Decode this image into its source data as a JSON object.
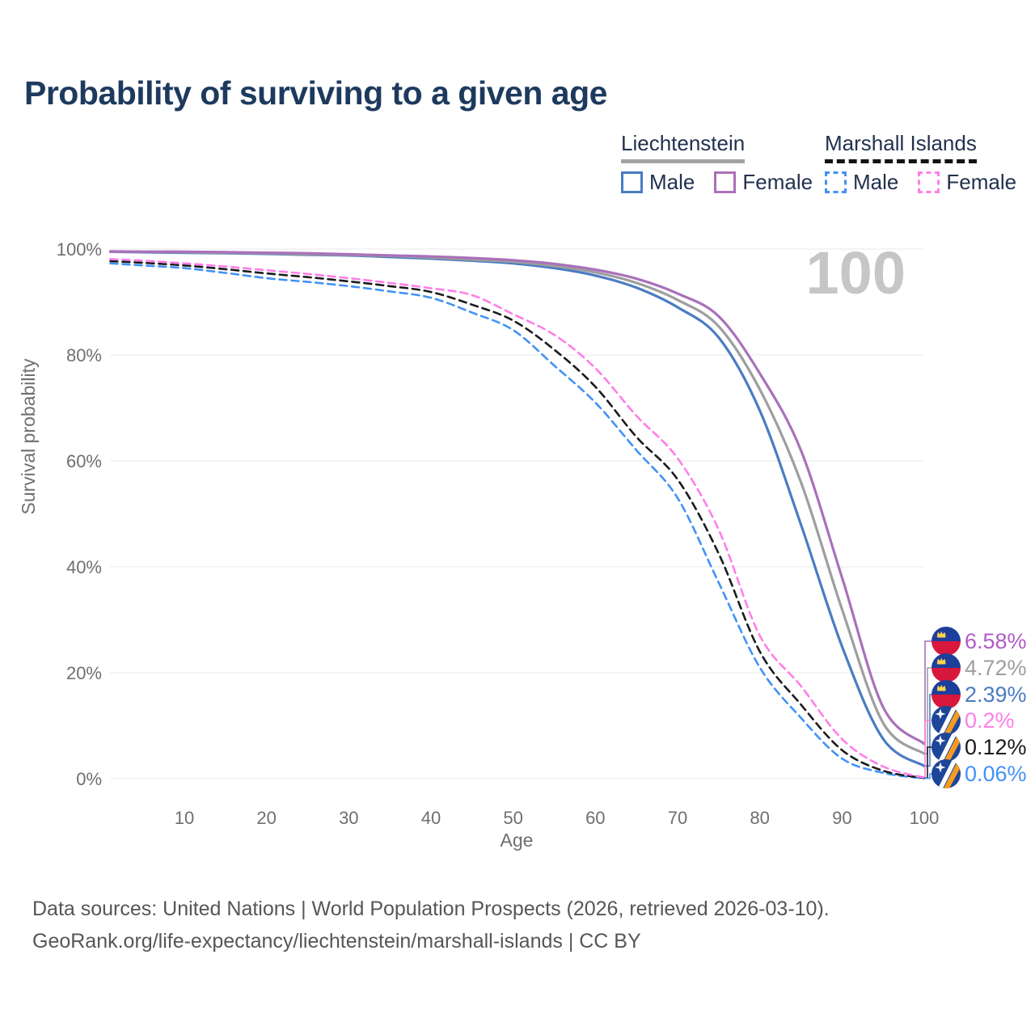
{
  "title": "Probability of surviving to a given age",
  "watermark": "100",
  "legend": {
    "groups": [
      {
        "label": "Liechtenstein",
        "style": "solid",
        "items": [
          {
            "label": "Male",
            "color": "#4a7cc2"
          },
          {
            "label": "Female",
            "color": "#a971ba"
          }
        ]
      },
      {
        "label": "Marshall Islands",
        "style": "dashed",
        "items": [
          {
            "label": "Male",
            "color": "#4292f5"
          },
          {
            "label": "Female",
            "color": "#ff7ee8"
          }
        ]
      }
    ]
  },
  "chart_data": {
    "type": "line",
    "title": "Probability of surviving to a given age",
    "xlabel": "Age",
    "ylabel": "Survival probability",
    "xlim": [
      0,
      100
    ],
    "ylim": [
      0,
      100
    ],
    "grid": "horizontal",
    "x_ticks": [
      10,
      20,
      30,
      40,
      50,
      60,
      70,
      80,
      90,
      100
    ],
    "y_ticks": [
      "0%",
      "20%",
      "40%",
      "60%",
      "80%",
      "100%"
    ],
    "x": [
      0,
      5,
      10,
      15,
      20,
      25,
      30,
      35,
      40,
      45,
      50,
      55,
      60,
      65,
      70,
      75,
      80,
      85,
      90,
      95,
      100
    ],
    "series": [
      {
        "name": "Liechtenstein Female",
        "country": "Liechtenstein",
        "sex": "Female",
        "flag": "liechtenstein",
        "color": "#a971ba",
        "label_color": "#b05cc6",
        "dash": false,
        "end_label": "6.58%",
        "values": [
          99.6,
          99.5,
          99.5,
          99.4,
          99.3,
          99.2,
          99.0,
          98.8,
          98.6,
          98.3,
          97.9,
          97.2,
          96.1,
          94.4,
          91.6,
          87.3,
          76.5,
          62,
          38,
          13.5,
          6.58
        ]
      },
      {
        "name": "Liechtenstein Total",
        "country": "Liechtenstein",
        "sex": "Both",
        "flag": "liechtenstein",
        "color": "#9e9e9e",
        "label_color": "#9e9e9e",
        "dash": false,
        "end_label": "4.72%",
        "values": [
          99.5,
          99.5,
          99.4,
          99.3,
          99.2,
          99.0,
          98.9,
          98.7,
          98.4,
          98.0,
          97.6,
          96.8,
          95.6,
          93.6,
          90.4,
          85.4,
          73.5,
          56,
          32,
          10.5,
          4.72
        ]
      },
      {
        "name": "Liechtenstein Male",
        "country": "Liechtenstein",
        "sex": "Male",
        "flag": "liechtenstein",
        "color": "#4a7cc2",
        "label_color": "#4a7cc2",
        "dash": false,
        "end_label": "2.39%",
        "values": [
          99.5,
          99.4,
          99.3,
          99.2,
          99.1,
          98.9,
          98.8,
          98.5,
          98.2,
          97.8,
          97.3,
          96.4,
          95.0,
          92.7,
          89.0,
          83.3,
          69.5,
          48,
          25,
          7.5,
          2.39
        ]
      },
      {
        "name": "Marshall Islands Female",
        "country": "Marshall Islands",
        "sex": "Female",
        "flag": "marshall-islands",
        "color": "#ff7ee8",
        "label_color": "#ff7ee8",
        "dash": true,
        "end_label": "0.2%",
        "values": [
          98.2,
          97.8,
          97.3,
          96.7,
          96.0,
          95.3,
          94.5,
          93.6,
          92.6,
          91.3,
          87.7,
          83.8,
          77.5,
          68.5,
          60.5,
          47.0,
          27.0,
          17.5,
          7.5,
          2.3,
          0.2
        ]
      },
      {
        "name": "Marshall Islands Total",
        "country": "Marshall Islands",
        "sex": "Both",
        "flag": "marshall-islands",
        "color": "#1b1b1b",
        "label_color": "#1b1b1b",
        "dash": true,
        "end_label": "0.12%",
        "values": [
          97.8,
          97.4,
          96.9,
          96.2,
          95.4,
          94.7,
          93.9,
          93.0,
          91.9,
          89.5,
          86.5,
          81.0,
          74.0,
          64.5,
          56.5,
          42.5,
          24.0,
          14.0,
          5.4,
          1.5,
          0.12
        ]
      },
      {
        "name": "Marshall Islands Male",
        "country": "Marshall Islands",
        "sex": "Male",
        "flag": "marshall-islands",
        "color": "#4292f5",
        "label_color": "#4292f5",
        "dash": true,
        "end_label": "0.06%",
        "values": [
          97.4,
          96.9,
          96.4,
          95.5,
          94.5,
          93.8,
          93.0,
          92.0,
          90.8,
          88.0,
          84.7,
          78.0,
          71.0,
          62.0,
          53.0,
          37.0,
          21.0,
          11.5,
          3.8,
          1.1,
          0.06
        ]
      }
    ]
  },
  "footer": {
    "line1": "Data sources: United Nations | World Population Prospects (2026, retrieved 2026-03-10).",
    "line2": "GeoRank.org/life-expectancy/liechtenstein/marshall-islands | CC BY"
  }
}
